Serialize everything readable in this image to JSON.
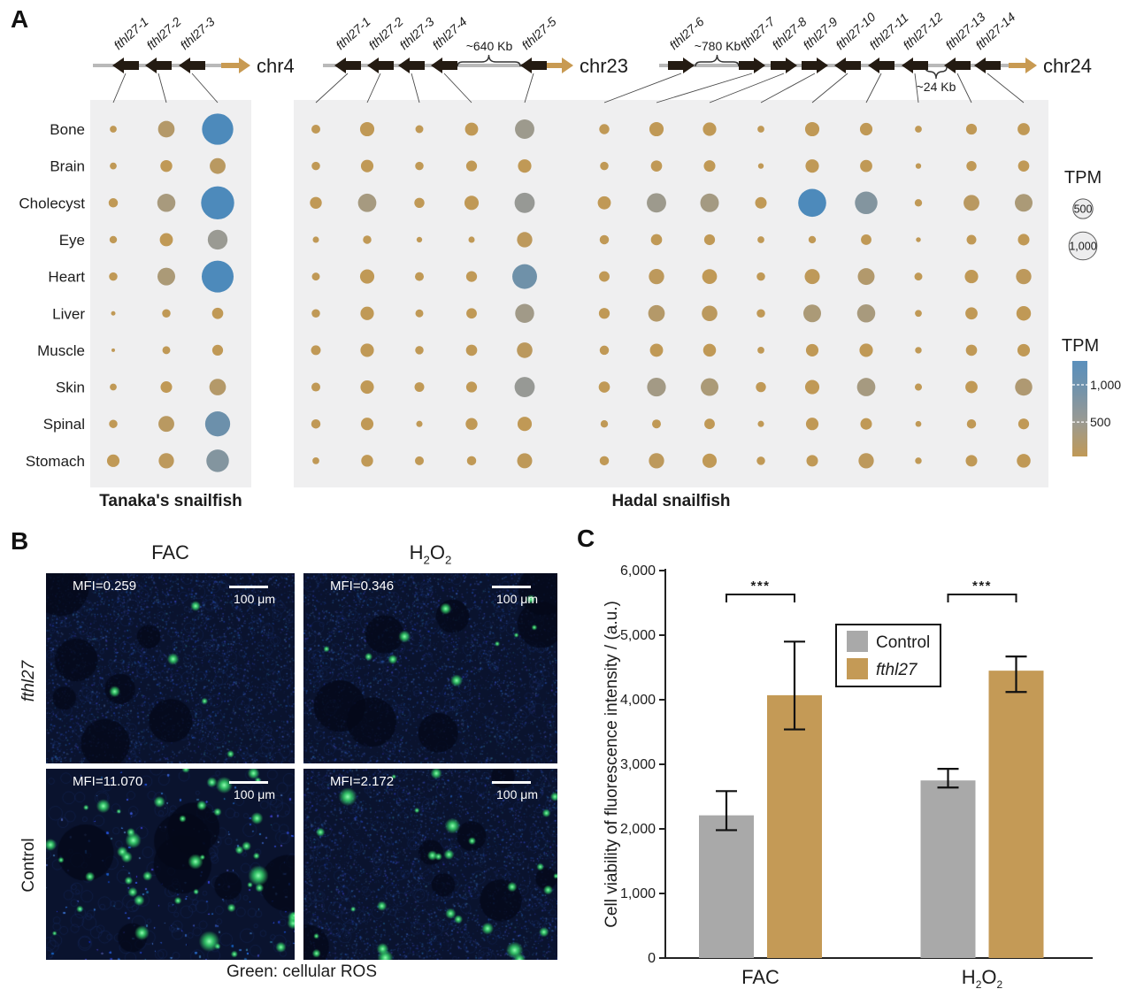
{
  "panels": {
    "a_label": "A",
    "b_label": "B",
    "c_label": "C"
  },
  "colors": {
    "bubble_low": "#c09956",
    "bubble_mid": "#9a9a93",
    "bubble_high": "#4d8abb",
    "chromosome_arrow": "#c89a52",
    "gene_color": "#241b12",
    "panel_bg": "#efeff0",
    "bar_control": "#a9a9a9",
    "bar_fthl27": "#c49a56",
    "micrograph_bg": "#0a132e",
    "ros_green": "#35d06a"
  },
  "chart_data": [
    {
      "id": "panel-a-bubble-matrix",
      "type": "bubble",
      "units": "TPM",
      "tissues": [
        "Bone",
        "Brain",
        "Cholecyst",
        "Eye",
        "Heart",
        "Liver",
        "Muscle",
        "Skin",
        "Spinal",
        "Stomach"
      ],
      "boxes": [
        {
          "label": "Tanaka's snailfish"
        },
        {
          "label": "Hadal snailfish"
        }
      ],
      "chromosomes": [
        {
          "name": "chr4",
          "box": 0,
          "genes": [
            {
              "name": "fthl27-1",
              "direction": "left"
            },
            {
              "name": "fthl27-2",
              "direction": "left"
            },
            {
              "name": "fthl27-3",
              "direction": "left"
            }
          ],
          "gaps": [],
          "tpm_by_tissue": [
            [
              60,
              350,
              1250
            ],
            [
              60,
              180,
              320
            ],
            [
              110,
              420,
              1400
            ],
            [
              70,
              220,
              500
            ],
            [
              90,
              400,
              1300
            ],
            [
              25,
              90,
              160
            ],
            [
              15,
              80,
              150
            ],
            [
              60,
              170,
              350
            ],
            [
              90,
              320,
              800
            ],
            [
              200,
              300,
              650
            ]
          ]
        },
        {
          "name": "chr23",
          "box": 1,
          "genes": [
            {
              "name": "fthl27-1",
              "direction": "left"
            },
            {
              "name": "fthl27-2",
              "direction": "left"
            },
            {
              "name": "fthl27-3",
              "direction": "left"
            },
            {
              "name": "fthl27-4",
              "direction": "left"
            },
            {
              "name": "fthl27-5",
              "direction": "left"
            }
          ],
          "gaps": [
            {
              "label": "~640 Kb",
              "between": [
                "fthl27-4",
                "fthl27-5"
              ]
            }
          ],
          "tpm_by_tissue": [
            [
              100,
              260,
              80,
              220,
              480
            ],
            [
              90,
              200,
              90,
              150,
              230
            ],
            [
              180,
              430,
              130,
              260,
              520
            ],
            [
              50,
              90,
              40,
              50,
              300
            ],
            [
              80,
              260,
              100,
              150,
              780
            ],
            [
              90,
              230,
              80,
              140,
              460
            ],
            [
              120,
              230,
              90,
              160,
              310
            ],
            [
              100,
              230,
              120,
              150,
              520
            ],
            [
              110,
              200,
              50,
              180,
              260
            ],
            [
              60,
              180,
              100,
              110,
              290
            ]
          ]
        },
        {
          "name": "chr24",
          "box": 1,
          "genes": [
            {
              "name": "fthl27-6",
              "direction": "right"
            },
            {
              "name": "fthl27-7",
              "direction": "right"
            },
            {
              "name": "fthl27-8",
              "direction": "right"
            },
            {
              "name": "fthl27-9",
              "direction": "right"
            },
            {
              "name": "fthl27-10",
              "direction": "left"
            },
            {
              "name": "fthl27-11",
              "direction": "left"
            },
            {
              "name": "fthl27-12",
              "direction": "left"
            },
            {
              "name": "fthl27-13",
              "direction": "left"
            },
            {
              "name": "fthl27-14",
              "direction": "left"
            }
          ],
          "gaps": [
            {
              "label": "~780 Kb",
              "between": [
                "fthl27-6",
                "fthl27-7"
              ]
            },
            {
              "label": "~24 Kb",
              "between": [
                "fthl27-12",
                "fthl27-13"
              ]
            }
          ],
          "tpm_by_tissue": [
            [
              130,
              260,
              230,
              60,
              260,
              200,
              60,
              150,
              190
            ],
            [
              90,
              160,
              170,
              40,
              230,
              190,
              40,
              130,
              160
            ],
            [
              220,
              480,
              440,
              170,
              1000,
              650,
              70,
              320,
              400
            ],
            [
              110,
              160,
              150,
              60,
              70,
              140,
              30,
              120,
              170
            ],
            [
              140,
              300,
              280,
              90,
              290,
              360,
              80,
              230,
              300
            ],
            [
              150,
              350,
              310,
              90,
              400,
              420,
              60,
              190,
              270
            ],
            [
              110,
              220,
              210,
              60,
              200,
              230,
              55,
              160,
              200
            ],
            [
              160,
              450,
              400,
              130,
              260,
              430,
              65,
              190,
              380
            ],
            [
              70,
              100,
              140,
              50,
              200,
              170,
              45,
              110,
              150
            ],
            [
              110,
              300,
              260,
              90,
              170,
              300,
              55,
              170,
              240
            ]
          ]
        }
      ],
      "size_legend": {
        "title": "TPM",
        "circles": [
          {
            "label": "500",
            "tpm": 500
          },
          {
            "label": "1,000",
            "tpm": 1000
          }
        ]
      },
      "color_legend": {
        "title": "TPM",
        "ticks": [
          {
            "label": "1,000",
            "tpm": 1000
          },
          {
            "label": "500",
            "tpm": 500
          }
        ]
      }
    },
    {
      "id": "panel-c-bar",
      "type": "bar",
      "categories": [
        {
          "label": "FAC",
          "formula": false
        },
        {
          "label": "H2O2",
          "formula": true
        }
      ],
      "series": [
        {
          "name": "Control",
          "color": "#a9a9a9",
          "italic": false,
          "values": [
            2210,
            2750
          ],
          "err_low": [
            1980,
            2640
          ],
          "err_high": [
            2585,
            2930
          ]
        },
        {
          "name": "fthl27",
          "color": "#c49a56",
          "italic": true,
          "values": [
            4070,
            4450
          ],
          "err_low": [
            3540,
            4120
          ],
          "err_high": [
            4900,
            4670
          ]
        }
      ],
      "significance": [
        "***",
        "***"
      ],
      "ylabel": "Cell viability of fluorescence intensity / (a.u.)",
      "ylim": [
        0,
        6000
      ],
      "yticks": [
        "0",
        "1,000",
        "2,000",
        "3,000",
        "4,000",
        "5,000",
        "6,000"
      ],
      "legend_position": "upper-left-of-plot"
    }
  ],
  "panelB": {
    "col_headers": [
      {
        "label": "FAC",
        "formula": false
      },
      {
        "label": "H2O2",
        "formula": true
      }
    ],
    "row_labels": [
      "fthl27",
      "Control"
    ],
    "images": [
      {
        "row": "fthl27",
        "col": "FAC",
        "mfi": "MFI=0.259"
      },
      {
        "row": "fthl27",
        "col": "H2O2",
        "mfi": "MFI=0.346"
      },
      {
        "row": "Control",
        "col": "FAC",
        "mfi": "MFI=11.070"
      },
      {
        "row": "Control",
        "col": "H2O2",
        "mfi": "MFI=2.172"
      }
    ],
    "scale_label": "100 μm",
    "caption": "Green: cellular ROS"
  }
}
